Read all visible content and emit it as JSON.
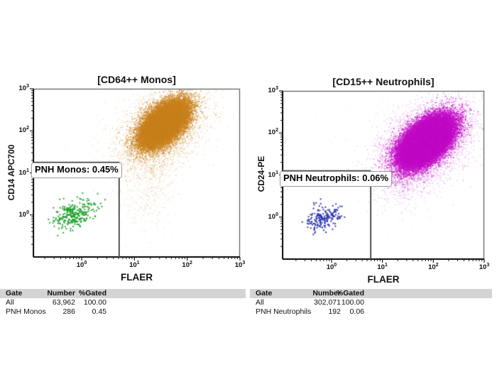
{
  "page": {
    "background": "#ffffff"
  },
  "chart_data": [
    {
      "type": "scatter",
      "title": "[CD64++ Monos]",
      "xlabel": "FLAER",
      "ylabel": "CD14 APC700",
      "x_scale": "log",
      "y_scale": "log",
      "x_range_log": [
        -0.915,
        3
      ],
      "y_range_log": [
        -1.0,
        3
      ],
      "x_tick_exponents": [
        0,
        1,
        2,
        3
      ],
      "y_tick_exponents": [
        0,
        1,
        2,
        3
      ],
      "grid": false,
      "total_events": 63962,
      "gate": {
        "label": "PNH Monos: 0.45%",
        "x_max_log": 0.71,
        "y_max_log": 1.25,
        "events": 286,
        "percent": 0.45
      },
      "clusters": [
        {
          "name": "cd64-monocytes-core",
          "color": "#C8821E",
          "center_log": [
            1.55,
            2.18
          ],
          "sigma_log": [
            0.21,
            0.25
          ],
          "rho": 0.55,
          "count": 26000,
          "size": 1.4,
          "alpha": 0.8
        },
        {
          "name": "cd64-monocytes-halo",
          "color": "#C8821E",
          "center_log": [
            1.52,
            2.05
          ],
          "sigma_log": [
            0.38,
            0.45
          ],
          "rho": 0.45,
          "count": 5200,
          "size": 1.2,
          "alpha": 0.35
        },
        {
          "name": "monocyte-tail",
          "color": "#CE9240",
          "center_log": [
            1.28,
            0.95
          ],
          "sigma_log": [
            0.3,
            0.65
          ],
          "rho": 0.25,
          "count": 650,
          "size": 1.2,
          "alpha": 0.28
        },
        {
          "name": "sparse-debris",
          "color": "#CE9240",
          "center_log": [
            1.1,
            1.8
          ],
          "sigma_log": [
            0.8,
            0.7
          ],
          "rho": 0.2,
          "count": 260,
          "size": 1.2,
          "alpha": 0.2
        },
        {
          "name": "pnh-monocytes",
          "color": "#1CA22C",
          "center_log": [
            -0.14,
            0.03
          ],
          "sigma_log": [
            0.2,
            0.17
          ],
          "rho": 0.35,
          "count": 286,
          "size": 2,
          "alpha": 0.95
        }
      ]
    },
    {
      "type": "scatter",
      "title": "[CD15++ Neutrophils]",
      "xlabel": "FLAER",
      "ylabel": "CD24-PE",
      "x_scale": "log",
      "y_scale": "log",
      "x_range_log": [
        -0.962,
        3
      ],
      "y_range_log": [
        -1.0,
        3
      ],
      "x_tick_exponents": [
        0,
        1,
        2,
        3
      ],
      "y_tick_exponents": [
        0,
        1,
        2,
        3
      ],
      "grid": false,
      "total_events": 302071,
      "gate": {
        "label": "PNH Neutrophils: 0.06%",
        "x_max_log": 0.77,
        "y_max_log": 1.1,
        "events": 192,
        "percent": 0.06
      },
      "clusters": [
        {
          "name": "cd15-neutrophils-core",
          "color": "#C20CC6",
          "center_log": [
            1.85,
            1.81
          ],
          "sigma_log": [
            0.24,
            0.27
          ],
          "rho": 0.55,
          "count": 42000,
          "size": 1.4,
          "alpha": 0.8
        },
        {
          "name": "cd15-neutrophils-halo",
          "color": "#C20CC6",
          "center_log": [
            1.82,
            1.72
          ],
          "sigma_log": [
            0.4,
            0.46
          ],
          "rho": 0.45,
          "count": 9000,
          "size": 1.2,
          "alpha": 0.32
        },
        {
          "name": "neutrophil-tail",
          "color": "#CE5FD2",
          "center_log": [
            1.45,
            0.9
          ],
          "sigma_log": [
            0.3,
            0.6
          ],
          "rho": 0.2,
          "count": 220,
          "size": 1.2,
          "alpha": 0.2
        },
        {
          "name": "sparse-debris",
          "color": "#CE5FD2",
          "center_log": [
            1.3,
            2.3
          ],
          "sigma_log": [
            0.7,
            0.5
          ],
          "rho": 0.2,
          "count": 150,
          "size": 1.2,
          "alpha": 0.18
        },
        {
          "name": "pnh-neutrophils",
          "color": "#2B35AE",
          "center_log": [
            -0.17,
            0.0
          ],
          "sigma_log": [
            0.17,
            0.14
          ],
          "rho": 0.3,
          "count": 192,
          "size": 2,
          "alpha": 0.95
        }
      ]
    }
  ],
  "tables": [
    {
      "headers": [
        "Gate",
        "Number",
        "%Gated"
      ],
      "rows": [
        [
          "All",
          "63,962",
          "100.00"
        ],
        [
          "PNH Monos",
          "286",
          "0.45"
        ]
      ]
    },
    {
      "headers": [
        "Gate",
        "Number",
        "%Gated"
      ],
      "rows": [
        [
          "All",
          "302,071",
          "100.00"
        ],
        [
          "PNH Neutrophils",
          "192",
          "0.06"
        ]
      ]
    }
  ],
  "colors": {
    "axis": "#1a1a1a",
    "frame": "#7a7a7a",
    "gate_line": "#555555",
    "table_header_bg": "#d4d4d4",
    "monos_cluster": "#C8821E",
    "pnh_monos_cluster": "#1CA22C",
    "neutrophils_cluster": "#C20CC6",
    "pnh_neutrophils_cluster": "#2B35AE"
  }
}
